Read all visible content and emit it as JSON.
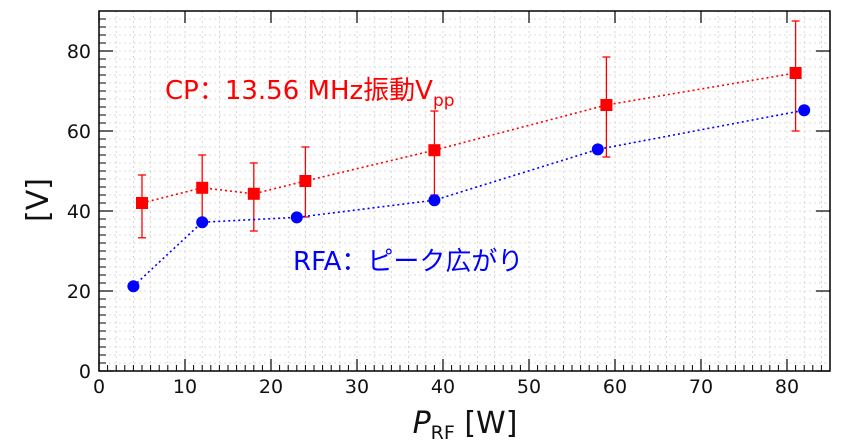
{
  "chart_data": {
    "type": "scatter",
    "xlabel_main": "P",
    "xlabel_sub": "RF",
    "xlabel_unit": " [W]",
    "ylabel": "[V]",
    "xlim": [
      0,
      85
    ],
    "ylim": [
      0,
      90
    ],
    "x_ticks": [
      0,
      10,
      20,
      30,
      40,
      50,
      60,
      70,
      80
    ],
    "y_ticks": [
      0,
      20,
      40,
      60,
      80
    ],
    "grid": true,
    "series": [
      {
        "name_main": "CP：13.56 MHz振動V",
        "name_sub": "pp",
        "color": "#ff0000",
        "marker": "square",
        "x": [
          5,
          12,
          18,
          24,
          39,
          59,
          81
        ],
        "y": [
          42,
          45.8,
          44.3,
          47.5,
          55.2,
          66.5,
          74.5
        ],
        "err_low": [
          33.3,
          37,
          35,
          38.5,
          44,
          53.5,
          60
        ],
        "err_high": [
          49,
          54,
          52,
          56,
          65,
          78.5,
          87.5
        ]
      },
      {
        "name": "RFA：ピーク広がり",
        "color": "#0000ff",
        "marker": "circle",
        "x": [
          4,
          12,
          23,
          39,
          58,
          82
        ],
        "y": [
          21.2,
          37.2,
          38.4,
          42.7,
          55.4,
          65.2
        ]
      }
    ]
  }
}
